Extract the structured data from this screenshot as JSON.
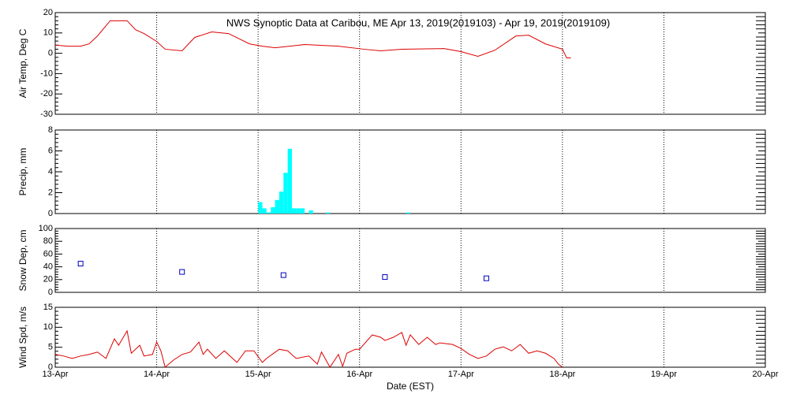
{
  "chart_data": [
    {
      "type": "line",
      "title": "NWS Synoptic Data at Caribou, ME   Apr 13, 2019(2019103) - Apr 19, 2019(2019109)",
      "ylabel": "Air Temp, Deg C",
      "xlim": [
        0,
        168
      ],
      "xticks": [
        0,
        24,
        48,
        72,
        96,
        120,
        144,
        168
      ],
      "ylim": [
        -30,
        20
      ],
      "yticks": [
        -30,
        -20,
        -10,
        0,
        10,
        20
      ],
      "grid": false,
      "series": [
        {
          "name": "Air Temp",
          "color": "#dd0000",
          "x": [
            0,
            3,
            6,
            8,
            10,
            13,
            17,
            19,
            21,
            24,
            26,
            30,
            33,
            37,
            41,
            46,
            49,
            52,
            59,
            67,
            73,
            77,
            82,
            92,
            96,
            100,
            104,
            109,
            112,
            116,
            120,
            121,
            122
          ],
          "values": [
            4,
            3.5,
            3.5,
            4.6,
            8.5,
            16,
            16,
            11.6,
            9.7,
            5.8,
            2,
            1.2,
            7.8,
            10.5,
            9.7,
            4.6,
            3.5,
            2.7,
            4.3,
            3.5,
            2,
            1.2,
            2,
            2.3,
            0.8,
            -1.5,
            1.5,
            8.5,
            8.9,
            4.6,
            2,
            -2.3,
            -2.3
          ]
        }
      ]
    },
    {
      "type": "bar",
      "ylabel": "Precip, mm",
      "xlim": [
        0,
        168
      ],
      "xticks": [
        0,
        24,
        48,
        72,
        96,
        120,
        144,
        168
      ],
      "ylim": [
        0,
        8
      ],
      "yticks": [
        0,
        2,
        4,
        6,
        8
      ],
      "grid": false,
      "series": [
        {
          "name": "Precip",
          "color": "#00ffff",
          "x": [
            48,
            49,
            50,
            51,
            52,
            53,
            54,
            55,
            56,
            57,
            58,
            60,
            64,
            83
          ],
          "values": [
            1.1,
            0.5,
            0.1,
            0.6,
            1.3,
            2.1,
            3.9,
            6.2,
            0.5,
            0.5,
            0.5,
            0.3,
            0.1,
            0.1
          ]
        }
      ]
    },
    {
      "type": "scatter",
      "ylabel": "Snow Dep, cm",
      "xlim": [
        0,
        168
      ],
      "xticks": [
        0,
        24,
        48,
        72,
        96,
        120,
        144,
        168
      ],
      "ylim": [
        0,
        100
      ],
      "yticks": [
        0,
        20,
        40,
        60,
        80,
        100
      ],
      "grid": false,
      "series": [
        {
          "name": "Snow Depth",
          "color": "#0000c0",
          "x": [
            6,
            30,
            54,
            78,
            102
          ],
          "values": [
            45,
            32,
            27,
            24,
            22
          ]
        }
      ]
    },
    {
      "type": "line",
      "ylabel": "Wind Spd, m/s",
      "xlabel": "Date (EST)",
      "xlim": [
        0,
        168
      ],
      "xticks": [
        {
          "value": 0,
          "label": "13-Apr"
        },
        {
          "value": 24,
          "label": "14-Apr"
        },
        {
          "value": 48,
          "label": "15-Apr"
        },
        {
          "value": 72,
          "label": "16-Apr"
        },
        {
          "value": 96,
          "label": "17-Apr"
        },
        {
          "value": 120,
          "label": "18-Apr"
        },
        {
          "value": 144,
          "label": "19-Apr"
        },
        {
          "value": 168,
          "label": "20-Apr"
        }
      ],
      "ylim": [
        0,
        15
      ],
      "yticks": [
        0,
        5,
        10,
        15
      ],
      "grid": false,
      "series": [
        {
          "name": "Wind Speed",
          "color": "#dd0000",
          "x": [
            0,
            2,
            4,
            6,
            8,
            10,
            12,
            14,
            15,
            17,
            18,
            20,
            21,
            23,
            24,
            25,
            26,
            28,
            30,
            32,
            34,
            35,
            36,
            38,
            40,
            43,
            45,
            47,
            49,
            50,
            53,
            55,
            57,
            60,
            62,
            63,
            65,
            67,
            68,
            69,
            71,
            72,
            75,
            77,
            78,
            80,
            82,
            83,
            84,
            86,
            88,
            90,
            91,
            94,
            96,
            98,
            100,
            102,
            104,
            106,
            108,
            110,
            112,
            114,
            116,
            118,
            119,
            120
          ],
          "values": [
            3.2,
            2.8,
            2.2,
            2.8,
            3.2,
            3.8,
            2.2,
            7.1,
            5.5,
            9.1,
            3.5,
            5.5,
            2.8,
            3.2,
            6.3,
            4.1,
            0,
            1.8,
            3.2,
            3.8,
            6.3,
            3.2,
            4.5,
            2.2,
            4.1,
            1.2,
            4.1,
            4.1,
            1.2,
            2.2,
            4.5,
            4.1,
            2.2,
            2.8,
            0.8,
            3.8,
            0,
            3.2,
            0.2,
            3.5,
            4.5,
            4.5,
            8.1,
            7.5,
            6.7,
            7.5,
            8.7,
            5.5,
            8.1,
            5.7,
            7.5,
            5.7,
            6.1,
            5.7,
            4.7,
            3.2,
            2.2,
            2.8,
            4.5,
            5.1,
            4.1,
            5.7,
            3.5,
            4.1,
            3.5,
            2.2,
            0.8,
            0
          ]
        }
      ]
    }
  ]
}
